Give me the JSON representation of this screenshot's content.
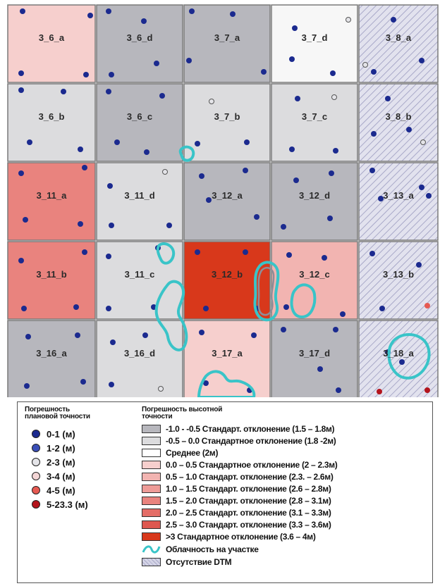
{
  "map": {
    "cells": [
      {
        "label": "3_6_a",
        "level": "h1"
      },
      {
        "label": "3_6_d",
        "level": "low2"
      },
      {
        "label": "3_7_a",
        "level": "low2"
      },
      {
        "label": "3_7_d",
        "level": "mean"
      },
      {
        "label": "3_8_a",
        "level": "nodtm"
      },
      {
        "label": "3_6_b",
        "level": "low1"
      },
      {
        "label": "3_6_c",
        "level": "low2"
      },
      {
        "label": "3_7_b",
        "level": "low1"
      },
      {
        "label": "3_7_c",
        "level": "low1"
      },
      {
        "label": "3_8_b",
        "level": "nodtm"
      },
      {
        "label": "3_11_a",
        "level": "h4"
      },
      {
        "label": "3_11_d",
        "level": "low1"
      },
      {
        "label": "3_12_a",
        "level": "low2"
      },
      {
        "label": "3_12_d",
        "level": "low2"
      },
      {
        "label": "3_13_a",
        "level": "nodtm"
      },
      {
        "label": "3_11_b",
        "level": "h4"
      },
      {
        "label": "3_11_c",
        "level": "low1"
      },
      {
        "label": "3_12_b",
        "level": "h9"
      },
      {
        "label": "3_12_c",
        "level": "h2"
      },
      {
        "label": "3_13_b",
        "level": "nodtm"
      },
      {
        "label": "3_16_a",
        "level": "low2"
      },
      {
        "label": "3_16_d",
        "level": "low1"
      },
      {
        "label": "3_17_a",
        "level": "h1"
      },
      {
        "label": "3_17_d",
        "level": "low2"
      },
      {
        "label": "3_18_a",
        "level": "nodtm"
      }
    ],
    "level_colors": {
      "low2": "#b7b7bd",
      "low1": "#dcdcde",
      "mean": "#f7f7f7",
      "h1": "#f6cfcd",
      "h2": "#f2b4b1",
      "h3": "#ee9b97",
      "h4": "#e9837e",
      "h5": "#e46d67",
      "h6": "#de5850",
      "h7": "#d9463b",
      "h8": "#d33826",
      "h9": "#d8381b",
      "nodtm": "#d4d4e6"
    },
    "cloud_color": "#39c4c8",
    "point_colors": {
      "p1": "#1b2a8f",
      "p2": "#3a4fb8",
      "p3": "#e4e4e8",
      "p4": "#f4d6d6",
      "p5": "#e65a52",
      "p6": "#b4141c"
    }
  },
  "legend": {
    "planar_title": "Погрешность плановой точности",
    "planar_title_line1": "Погрешность",
    "planar_title_line2": "плановой точности",
    "height_title_line1": "Погрешность высотной",
    "height_title_line2": "точности",
    "planar": [
      {
        "label": "0-1 (м)",
        "color": "#1b2a8f"
      },
      {
        "label": "1-2 (м)",
        "color": "#3a4fb8"
      },
      {
        "label": "2-3 (м)",
        "color": "#e4e4e8"
      },
      {
        "label": "3-4 (м)",
        "color": "#f4d6d6"
      },
      {
        "label": "4-5 (м)",
        "color": "#e65a52"
      },
      {
        "label": "5-23.3 (м)",
        "color": "#b4141c"
      }
    ],
    "height": [
      {
        "label": "-1.0 - -0.5 Стандарт. отклонение (1.5 – 1.8м)",
        "color": "#b7b7bd"
      },
      {
        "label": "-0.5 – 0.0 Стандартное отклонение (1.8 -2м)",
        "color": "#dcdcde"
      },
      {
        "label": "Среднее (2м)",
        "color": "#ffffff"
      },
      {
        "label": "0.0 – 0.5 Стандартное отклонение (2 – 2.3м)",
        "color": "#f6cfcd"
      },
      {
        "label": "0.5 – 1.0 Стандарт. отклонение (2.3. – 2.6м)",
        "color": "#f2b4b1"
      },
      {
        "label": "1.0 – 1.5 Стандарт. отклонение (2.6 – 2.8м)",
        "color": "#ee9b97"
      },
      {
        "label": "1.5 – 2.0 Стандарт. отклонение (2.8 – 3.1м)",
        "color": "#e9837e"
      },
      {
        "label": "2.0 – 2.5 Стандарт. отклонение (3.1 – 3.3м)",
        "color": "#e46d67"
      },
      {
        "label": "2.5 – 3.0 Стандарт. отклонение (3.3 – 3.6м)",
        "color": "#de5850"
      },
      {
        "label": ">3 Стандартное отклонение (3.6 – 4м)",
        "color": "#d8381b"
      }
    ],
    "cloud_label": "Облачность на участке",
    "nodtm_label": "Отсутствие DTM"
  }
}
